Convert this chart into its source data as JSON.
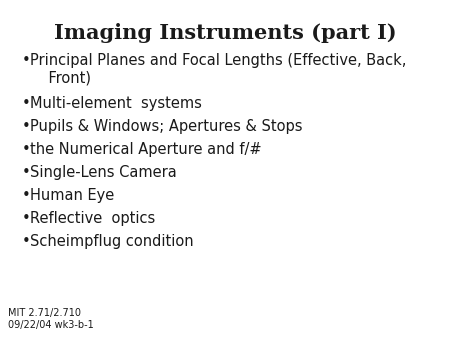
{
  "title": "Imaging Instruments (part I)",
  "title_fontsize": 15,
  "title_fontweight": "bold",
  "bullet_items": [
    "Principal Planes and Focal Lengths (Effective, Back,\n    Front)",
    "Multi-element  systems",
    "Pupils & Windows; Apertures & Stops",
    "the Numerical Aperture and f/#",
    "Single-Lens Camera",
    "Human Eye",
    "Reflective  optics",
    "Scheimpflug condition"
  ],
  "bullet_fontsize": 10.5,
  "footer_text": "MIT 2.71/2.710\n09/22/04 wk3-b-1",
  "footer_fontsize": 7,
  "background_color": "#ffffff",
  "text_color": "#1a1a1a",
  "bullet_char": "•"
}
